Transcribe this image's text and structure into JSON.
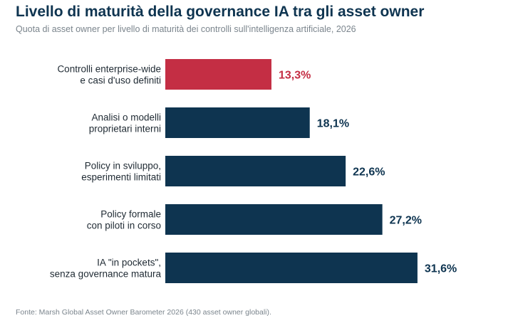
{
  "title": "Livello di maturità della governance IA tra gli asset owner",
  "subtitle": "Quota di asset owner per livello di maturità dei controlli sull'intelligenza artificiale, 2026",
  "source": "Fonte: Marsh Global Asset Owner Barometer 2026 (430 asset owner globali).",
  "colors": {
    "highlight": "#c42e44",
    "default": "#0e3450",
    "title": "#0e3450",
    "muted": "#7b858d"
  },
  "chart_data": {
    "type": "bar",
    "orientation": "horizontal",
    "categories": [
      [
        "Controlli enterprise-wide",
        "e casi d'uso definiti"
      ],
      [
        "Analisi o modelli",
        "proprietari interni"
      ],
      [
        "Policy in sviluppo,",
        "esperimenti limitati"
      ],
      [
        "Policy formale",
        "con piloti in corso"
      ],
      [
        "IA \"in pockets\",",
        "senza governance matura"
      ]
    ],
    "values": [
      13.3,
      18.1,
      22.6,
      27.2,
      31.6
    ],
    "value_labels": [
      "13,3%",
      "18,1%",
      "22,6%",
      "27,2%",
      "31,6%"
    ],
    "highlight_index": 0,
    "unit": "%",
    "grid": false,
    "legend": "none"
  }
}
